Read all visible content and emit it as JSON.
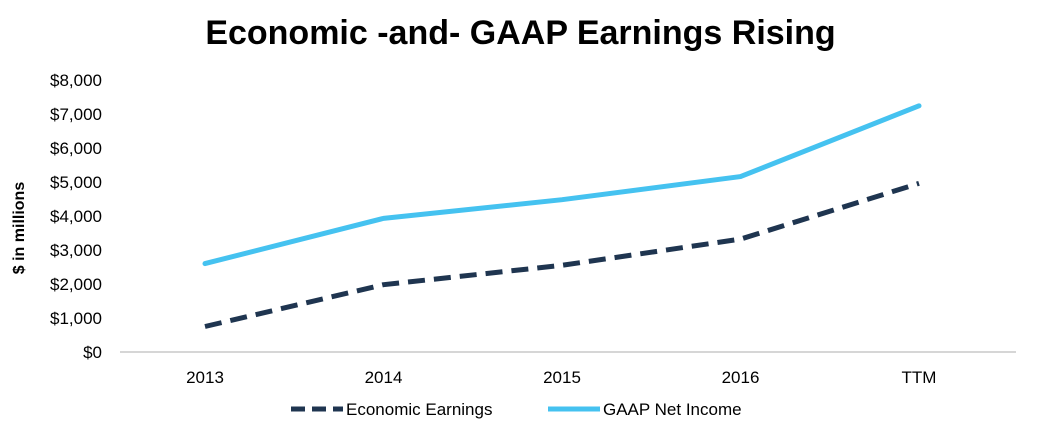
{
  "chart_data": {
    "type": "line",
    "title": "Economic -and- GAAP Earnings Rising",
    "xlabel": "",
    "ylabel": "$ in millions",
    "categories": [
      "2013",
      "2014",
      "2015",
      "2016",
      "TTM"
    ],
    "ylim": [
      0,
      8000
    ],
    "yticks": [
      0,
      1000,
      2000,
      3000,
      4000,
      5000,
      6000,
      7000,
      8000
    ],
    "ytick_labels": [
      "$0",
      "$1,000",
      "$2,000",
      "$3,000",
      "$4,000",
      "$5,000",
      "$6,000",
      "$7,000",
      "$8,000"
    ],
    "grid": false,
    "legend_position": "bottom",
    "series": [
      {
        "name": "Economic Earnings",
        "values": [
          750,
          1980,
          2550,
          3320,
          4960
        ],
        "color": "#1f3550",
        "style": "dashed"
      },
      {
        "name": "GAAP Net Income",
        "values": [
          2600,
          3930,
          4480,
          5160,
          7240
        ],
        "color": "#45c2f0",
        "style": "solid"
      }
    ]
  }
}
